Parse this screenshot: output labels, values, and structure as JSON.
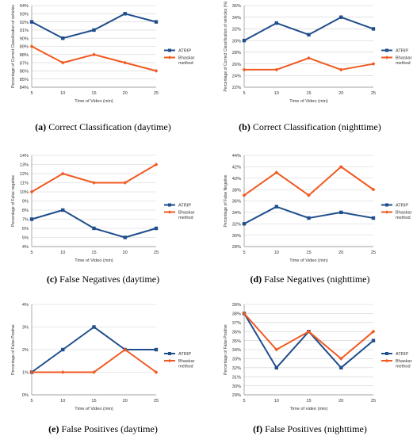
{
  "colors": {
    "atrip": "#1f4e8c",
    "bhaskar": "#f05a22",
    "grid": "#d0d0d0",
    "axis": "#888888"
  },
  "chart_data": [
    {
      "id": "a",
      "type": "line",
      "caption_letter": "(a)",
      "caption_text": "Correct Classification (daytime)",
      "x": [
        5,
        10,
        15,
        20,
        25
      ],
      "xlabel": "Time of Video (min)",
      "ylabel": "Percentage of Correct Classification of vehicles",
      "ylim": [
        84,
        94
      ],
      "ytick_step": 1,
      "ytick_suffix": "%",
      "grid": true,
      "legend_position": "right",
      "series": [
        {
          "name": "ATRIP",
          "color": "#1f4e8c",
          "values": [
            92,
            90,
            91,
            93,
            92
          ]
        },
        {
          "name": "Bhaskar method",
          "color": "#f05a22",
          "values": [
            89,
            87,
            88,
            87,
            86
          ]
        }
      ]
    },
    {
      "id": "b",
      "type": "line",
      "caption_letter": "(b)",
      "caption_text": "Correct Classification (nighttime)",
      "x": [
        5,
        10,
        15,
        20,
        25
      ],
      "xlabel": "Time of Video (min)",
      "ylabel": "Percentage of Correct Classification of vehicles (%)",
      "ylim": [
        22,
        36
      ],
      "ytick_step": 2,
      "ytick_suffix": "%",
      "grid": true,
      "legend_position": "right",
      "series": [
        {
          "name": "ATRIP",
          "color": "#1f4e8c",
          "values": [
            30,
            33,
            31,
            34,
            32
          ]
        },
        {
          "name": "Bhaskar method",
          "color": "#f05a22",
          "values": [
            25,
            25,
            27,
            25,
            26
          ]
        }
      ]
    },
    {
      "id": "c",
      "type": "line",
      "caption_letter": "(c)",
      "caption_text": "False Negatives (daytime)",
      "x": [
        5,
        10,
        15,
        20,
        25
      ],
      "xlabel": "Time of Video (min)",
      "ylabel": "Percentage of False negative",
      "ylim": [
        4,
        14
      ],
      "ytick_step": 1,
      "ytick_suffix": "%",
      "grid": true,
      "legend_position": "right",
      "series": [
        {
          "name": "ATRIP",
          "color": "#1f4e8c",
          "values": [
            7,
            8,
            6,
            5,
            6
          ]
        },
        {
          "name": "Bhaskar method",
          "color": "#f05a22",
          "values": [
            10,
            12,
            11,
            11,
            13
          ]
        }
      ]
    },
    {
      "id": "d",
      "type": "line",
      "caption_letter": "(d)",
      "caption_text": "False Negatives (nighttime)",
      "x": [
        5,
        10,
        15,
        20,
        25
      ],
      "xlabel": "Time of Video (min)",
      "ylabel": "Percentage of False Negative",
      "ylim": [
        28,
        44
      ],
      "ytick_step": 2,
      "ytick_suffix": "%",
      "grid": true,
      "legend_position": "right",
      "series": [
        {
          "name": "ATRIP",
          "color": "#1f4e8c",
          "values": [
            32,
            35,
            33,
            34,
            33
          ]
        },
        {
          "name": "Bhaskar method",
          "color": "#f05a22",
          "values": [
            37,
            41,
            37,
            42,
            38
          ]
        }
      ]
    },
    {
      "id": "e",
      "type": "line",
      "caption_letter": "(e)",
      "caption_text": "False Positives (daytime)",
      "x": [
        5,
        10,
        15,
        20,
        25
      ],
      "xlabel": "Time of Video (min)",
      "ylabel": "Percentage of False Positive",
      "ylim": [
        0,
        4
      ],
      "ytick_step": 1,
      "ytick_suffix": "%",
      "grid": true,
      "legend_position": "right",
      "series": [
        {
          "name": "ATRIP",
          "color": "#1f4e8c",
          "values": [
            1,
            2,
            3,
            2,
            2
          ]
        },
        {
          "name": "Bhaskar method",
          "color": "#f05a22",
          "values": [
            1,
            1,
            1,
            2,
            1
          ]
        }
      ]
    },
    {
      "id": "f",
      "type": "line",
      "caption_letter": "(f)",
      "caption_text": "False Positives (nighttime)",
      "x": [
        5,
        10,
        15,
        20,
        25
      ],
      "xlabel": "Time of video (min)",
      "ylabel": "Percentage of False Positive",
      "ylim": [
        29,
        39
      ],
      "ytick_step": 1,
      "ytick_suffix": "%",
      "grid": true,
      "legend_position": "right",
      "series": [
        {
          "name": "ATRIP",
          "color": "#1f4e8c",
          "values": [
            38,
            32,
            36,
            32,
            35
          ]
        },
        {
          "name": "Bhaskar method",
          "color": "#f05a22",
          "values": [
            38,
            34,
            36,
            33,
            36
          ]
        }
      ]
    }
  ]
}
